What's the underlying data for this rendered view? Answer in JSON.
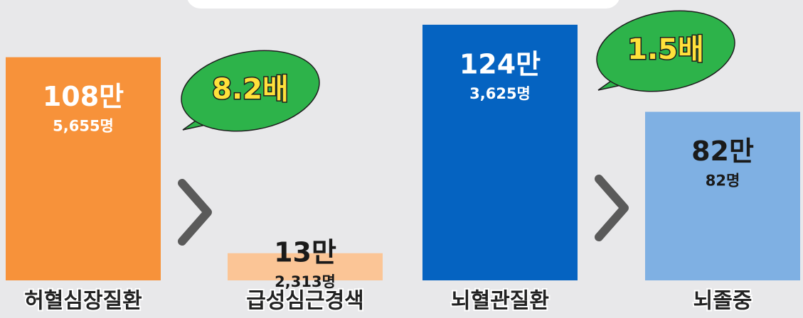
{
  "chart_data": {
    "type": "bar",
    "categories": [
      "허혈심장질환",
      "급성심근경색",
      "뇌혈관질환",
      "뇌졸중"
    ],
    "values": [
      1085655,
      132313,
      1243625,
      820082
    ],
    "value_labels": [
      [
        "108만",
        "5,655명"
      ],
      [
        "13만",
        "2,313명"
      ],
      [
        "124만",
        "3,625명"
      ],
      [
        "82만",
        "82명"
      ]
    ],
    "colors": [
      "#f7923a",
      "#fbc596",
      "#0563c1",
      "#7fb0e3"
    ],
    "ylim": [
      0,
      1250000
    ],
    "annotations": [
      "8.2배",
      "1.5배"
    ]
  }
}
